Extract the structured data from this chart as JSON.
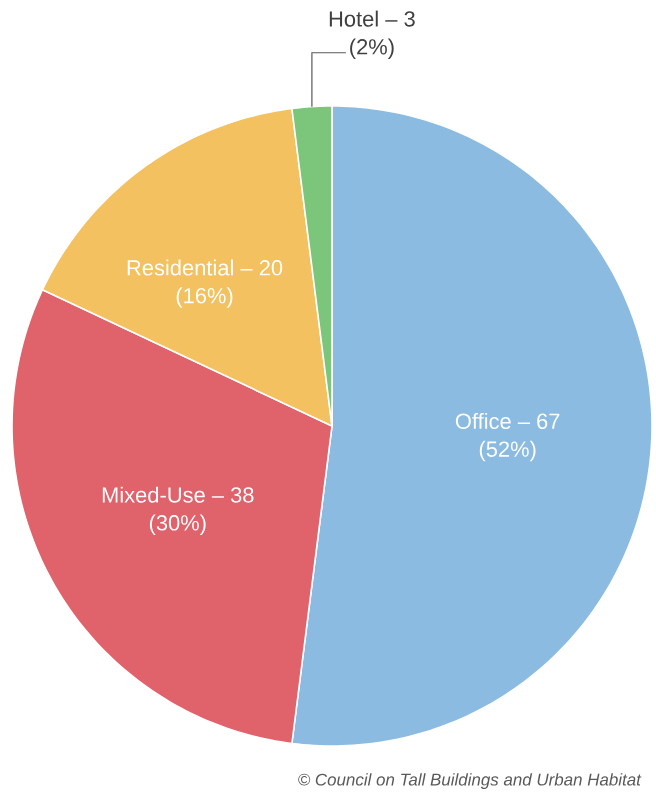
{
  "chart_data": {
    "type": "pie",
    "categories": [
      "Office – 67",
      "Mixed-Use – 38",
      "Residential – 20",
      "Hotel – 3"
    ],
    "values": [
      52,
      30,
      16,
      2
    ],
    "value_labels": [
      "(52%)",
      "(30%)",
      "(16%)",
      "(2%)"
    ],
    "colors": [
      "#8cbbe2",
      "#e0626b",
      "#f3c15f",
      "#7cc67c"
    ],
    "annotations": [
      "© Council on Tall Buildings and Urban Habitat"
    ]
  }
}
